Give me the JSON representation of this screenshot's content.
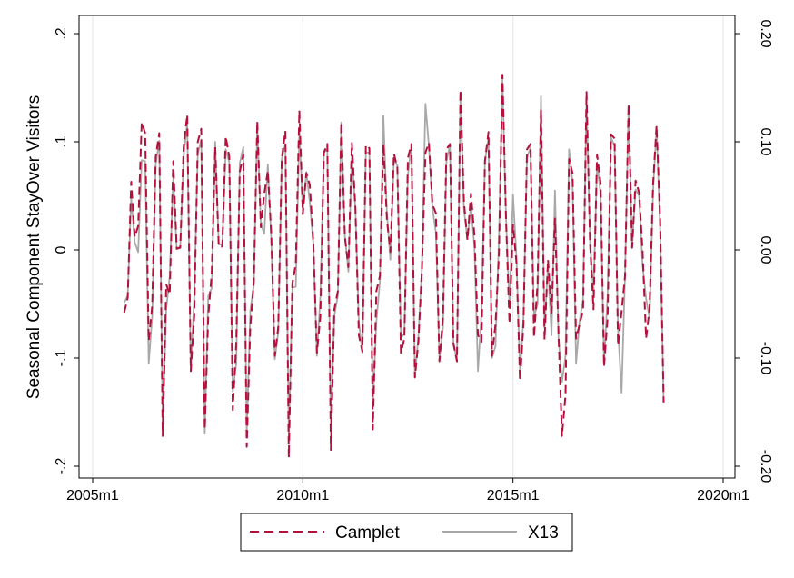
{
  "chart_data": {
    "type": "line",
    "ylabel": "Seasonal Component StayOver Visitors",
    "xlim": [
      2005.0,
      2020.0
    ],
    "ylim": [
      -0.2,
      0.2
    ],
    "x_ticks": [
      {
        "value": 2005.0,
        "label": "2005m1"
      },
      {
        "value": 2010.0,
        "label": "2010m1"
      },
      {
        "value": 2015.0,
        "label": "2015m1"
      },
      {
        "value": 2020.0,
        "label": "2020m1"
      }
    ],
    "y_ticks_left": [
      {
        "value": 0.2,
        "label": ".2"
      },
      {
        "value": 0.1,
        "label": ".1"
      },
      {
        "value": 0.0,
        "label": "0"
      },
      {
        "value": -0.1,
        "label": "-.1"
      },
      {
        "value": -0.2,
        "label": "-.2"
      }
    ],
    "y_ticks_right": [
      {
        "value": 0.2,
        "label": "0.20"
      },
      {
        "value": 0.1,
        "label": "0.10"
      },
      {
        "value": 0.0,
        "label": "0.00"
      },
      {
        "value": -0.1,
        "label": "-0.10"
      },
      {
        "value": -0.2,
        "label": "-0.20"
      }
    ],
    "grid": "vertical at x ticks",
    "legend_position": "bottom",
    "x_start": 2005.75,
    "x_step": 0.083333,
    "series": [
      {
        "name": "Camplet",
        "color": "#b5103c",
        "dash": "dashed",
        "values": [
          -0.058,
          -0.044,
          0.063,
          0.012,
          0.022,
          0.118,
          0.108,
          -0.084,
          -0.052,
          0.086,
          0.108,
          -0.172,
          -0.032,
          -0.041,
          0.082,
          0.001,
          0.002,
          0.096,
          0.125,
          -0.112,
          -0.061,
          0.1,
          0.112,
          -0.166,
          -0.062,
          -0.021,
          0.095,
          0.003,
          0.003,
          0.105,
          0.086,
          -0.148,
          -0.085,
          0.072,
          0.088,
          -0.182,
          -0.071,
          -0.029,
          0.119,
          0.021,
          0.052,
          0.073,
          0.014,
          -0.098,
          -0.071,
          0.085,
          0.11,
          -0.192,
          -0.031,
          -0.013,
          0.129,
          0.033,
          0.071,
          0.06,
          0.006,
          -0.095,
          -0.062,
          0.09,
          0.098,
          -0.185,
          -0.055,
          -0.038,
          0.118,
          0.012,
          -0.016,
          0.099,
          0.039,
          -0.079,
          -0.094,
          0.097,
          0.094,
          -0.166,
          -0.038,
          -0.024,
          0.098,
          0.028,
          -0.002,
          0.089,
          0.076,
          -0.095,
          -0.082,
          0.085,
          0.098,
          -0.118,
          -0.084,
          -0.019,
          0.09,
          0.099,
          0.042,
          0.034,
          -0.103,
          -0.062,
          0.093,
          0.098,
          -0.087,
          -0.103,
          0.148,
          0.044,
          0.009,
          0.052,
          0.013,
          -0.079,
          -0.085,
          0.082,
          0.109,
          -0.098,
          -0.069,
          -0.004,
          0.162,
          0.028,
          -0.068,
          0.023,
          -0.012,
          -0.121,
          -0.069,
          0.093,
          0.098,
          -0.081,
          -0.031,
          0.129,
          -0.083,
          -0.009,
          -0.058,
          0.029,
          -0.078,
          -0.172,
          -0.134,
          0.084,
          0.071,
          -0.082,
          -0.069,
          -0.056,
          0.146,
          0.006,
          -0.055,
          0.088,
          0.062,
          -0.108,
          -0.063,
          0.107,
          0.103,
          -0.088,
          -0.057,
          -0.024,
          0.135,
          0.002,
          0.064,
          0.053,
          -0.001,
          -0.082,
          -0.054,
          0.061,
          0.115,
          0.029,
          -0.141
        ]
      },
      {
        "name": "X13",
        "color": "#a8a8a8",
        "dash": "solid",
        "values": [
          -0.049,
          -0.042,
          0.048,
          0.007,
          -0.002,
          0.083,
          0.082,
          -0.105,
          -0.062,
          0.079,
          0.101,
          -0.162,
          -0.055,
          -0.024,
          0.067,
          0.001,
          0.003,
          0.087,
          0.118,
          -0.112,
          -0.044,
          0.089,
          0.102,
          -0.17,
          -0.043,
          -0.035,
          0.1,
          0.005,
          0.005,
          0.093,
          0.081,
          -0.131,
          -0.105,
          0.08,
          0.095,
          -0.17,
          -0.056,
          -0.033,
          0.117,
          0.024,
          0.015,
          0.079,
          0.009,
          -0.101,
          -0.076,
          0.084,
          0.098,
          -0.174,
          -0.035,
          -0.034,
          0.11,
          0.036,
          0.072,
          0.044,
          0.006,
          -0.098,
          -0.043,
          0.09,
          0.093,
          -0.164,
          -0.061,
          -0.042,
          0.118,
          0.013,
          -0.02,
          0.088,
          0.038,
          -0.067,
          -0.095,
          0.09,
          0.09,
          -0.145,
          -0.066,
          -0.029,
          0.124,
          0.034,
          -0.009,
          0.084,
          0.078,
          -0.081,
          -0.078,
          0.069,
          0.098,
          -0.118,
          -0.079,
          -0.017,
          0.135,
          0.096,
          0.039,
          0.016,
          -0.101,
          -0.072,
          0.082,
          0.097,
          -0.085,
          -0.103,
          0.141,
          0.037,
          0.01,
          0.041,
          0.002,
          -0.112,
          -0.058,
          0.082,
          0.103,
          -0.1,
          -0.089,
          0.011,
          0.158,
          0.03,
          -0.053,
          0.051,
          -0.007,
          -0.114,
          -0.063,
          0.085,
          0.095,
          -0.062,
          -0.05,
          0.142,
          -0.072,
          -0.013,
          -0.079,
          0.055,
          -0.082,
          -0.122,
          -0.098,
          0.093,
          0.063,
          -0.105,
          -0.066,
          -0.046,
          0.138,
          0.007,
          -0.04,
          0.081,
          0.052,
          -0.106,
          -0.041,
          0.104,
          0.096,
          -0.073,
          -0.132,
          -0.024,
          0.132,
          0.003,
          0.056,
          0.05,
          -0.014,
          -0.045,
          -0.063,
          0.055,
          0.114,
          0.021,
          -0.139
        ]
      }
    ]
  }
}
